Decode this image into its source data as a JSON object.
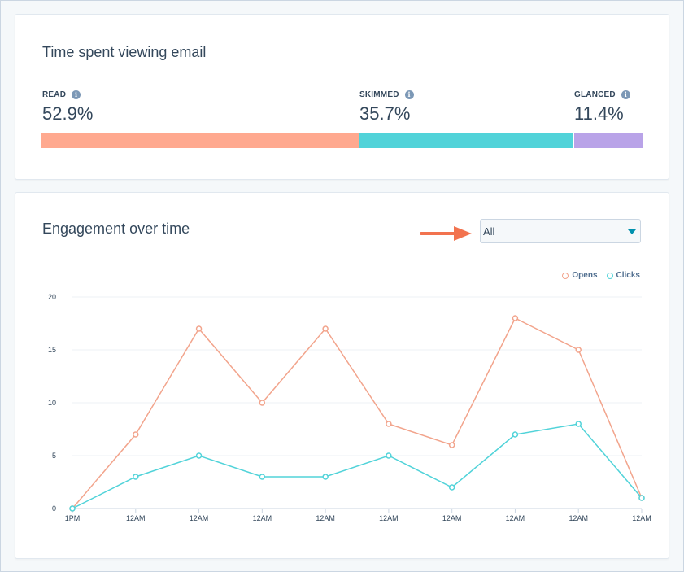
{
  "time_card": {
    "title": "Time spent viewing email",
    "metrics": [
      {
        "label": "READ",
        "value": "52.9%",
        "percent": 52.9,
        "color": "#ffa98f"
      },
      {
        "label": "SKIMMED",
        "value": "35.7%",
        "percent": 35.7,
        "color": "#51d3d9"
      },
      {
        "label": "GLANCED",
        "value": "11.4%",
        "percent": 11.4,
        "color": "#b9a3e8"
      }
    ],
    "info_icon": "info-icon"
  },
  "engagement_card": {
    "title": "Engagement over time",
    "filter": {
      "selected": "All"
    },
    "annotation_arrow_color": "#f2734f"
  },
  "chart_data": {
    "type": "line",
    "categories": [
      "1PM",
      "12AM",
      "12AM",
      "12AM",
      "12AM",
      "12AM",
      "12AM",
      "12AM",
      "12AM",
      "12AM"
    ],
    "series": [
      {
        "name": "Opens",
        "color": "#f2a48c",
        "values": [
          0,
          7,
          17,
          10,
          17,
          8,
          6,
          18,
          15,
          1
        ]
      },
      {
        "name": "Clicks",
        "color": "#51d3d9",
        "values": [
          0,
          3,
          5,
          3,
          3,
          5,
          2,
          7,
          8,
          1
        ]
      }
    ],
    "yticks": [
      0,
      5,
      10,
      15,
      20
    ],
    "ylim": [
      0,
      20
    ],
    "grid": true,
    "legend_position": "top-right"
  }
}
